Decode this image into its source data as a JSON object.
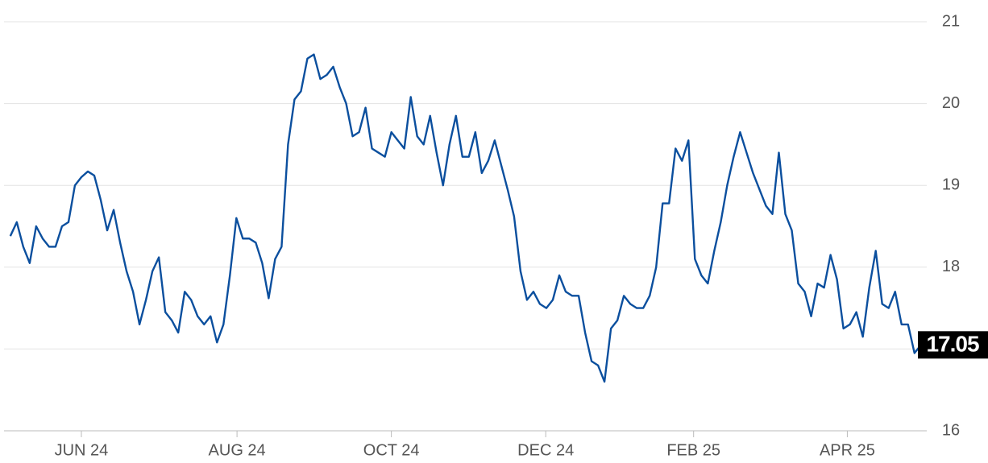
{
  "chart_data": {
    "type": "line",
    "color": "#0b4f9e",
    "values": [
      18.38,
      18.55,
      18.25,
      18.05,
      18.5,
      18.35,
      18.25,
      18.25,
      18.5,
      18.55,
      19.0,
      19.1,
      19.17,
      19.12,
      18.82,
      18.45,
      18.7,
      18.3,
      17.95,
      17.7,
      17.3,
      17.6,
      17.95,
      18.12,
      17.45,
      17.35,
      17.2,
      17.7,
      17.6,
      17.4,
      17.3,
      17.4,
      17.08,
      17.3,
      17.9,
      18.6,
      18.35,
      18.35,
      18.3,
      18.05,
      17.62,
      18.1,
      18.25,
      19.5,
      20.05,
      20.15,
      20.55,
      20.6,
      20.3,
      20.35,
      20.45,
      20.2,
      20.0,
      19.6,
      19.65,
      19.95,
      19.45,
      19.4,
      19.35,
      19.65,
      19.55,
      19.45,
      20.08,
      19.6,
      19.5,
      19.85,
      19.4,
      19.0,
      19.5,
      19.85,
      19.35,
      19.35,
      19.65,
      19.15,
      19.3,
      19.55,
      19.25,
      18.95,
      18.62,
      17.95,
      17.6,
      17.7,
      17.55,
      17.5,
      17.6,
      17.9,
      17.7,
      17.65,
      17.65,
      17.2,
      16.85,
      16.8,
      16.6,
      17.25,
      17.35,
      17.65,
      17.55,
      17.5,
      17.5,
      17.65,
      18.0,
      18.78,
      18.78,
      19.45,
      19.3,
      19.55,
      18.1,
      17.9,
      17.8,
      18.2,
      18.55,
      19.0,
      19.35,
      19.65,
      19.4,
      19.15,
      18.95,
      18.75,
      18.65,
      19.4,
      18.65,
      18.45,
      17.8,
      17.7,
      17.4,
      17.8,
      17.75,
      18.15,
      17.85,
      17.25,
      17.3,
      17.45,
      17.15,
      17.75,
      18.2,
      17.55,
      17.5,
      17.7,
      17.3,
      17.3,
      16.95,
      17.05
    ],
    "xlim": [
      -1.6,
      141.9
    ],
    "xticks": [
      {
        "value": 11.0,
        "label": "JUN 24"
      },
      {
        "value": 35.1,
        "label": "AUG 24"
      },
      {
        "value": 59.0,
        "label": "OCT 24"
      },
      {
        "value": 82.9,
        "label": "DEC 24"
      },
      {
        "value": 105.8,
        "label": "FEB 25"
      },
      {
        "value": 129.6,
        "label": "APR 25"
      }
    ],
    "ylim": [
      16,
      21
    ],
    "yticks": [
      16,
      17,
      18,
      19,
      20,
      21
    ],
    "grid": true
  }
}
